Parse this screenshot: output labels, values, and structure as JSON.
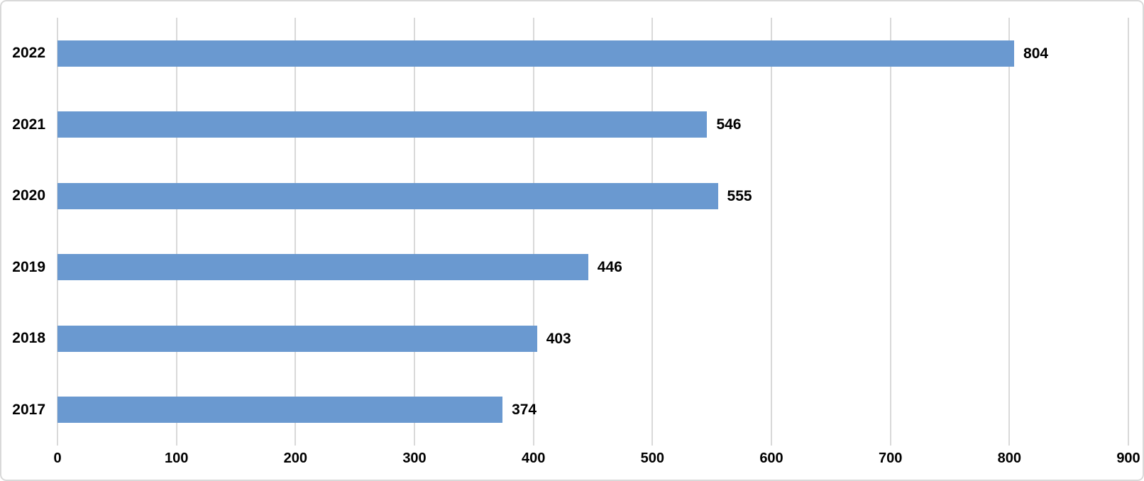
{
  "chart_data": {
    "type": "bar",
    "orientation": "horizontal",
    "title": "",
    "xlabel": "",
    "ylabel": "",
    "categories": [
      "2022",
      "2021",
      "2020",
      "2019",
      "2018",
      "2017"
    ],
    "values": [
      804,
      546,
      555,
      446,
      403,
      374
    ],
    "data_labels": [
      "804",
      "546",
      "555",
      "446",
      "403",
      "374"
    ],
    "xlim": [
      0,
      900
    ],
    "x_ticks": [
      0,
      100,
      200,
      300,
      400,
      500,
      600,
      700,
      800,
      900
    ],
    "x_tick_labels": [
      "0",
      "100",
      "200",
      "300",
      "400",
      "500",
      "600",
      "700",
      "800",
      "900"
    ],
    "grid": "vertical-only",
    "legend": "none",
    "colors": {
      "bar": "#6A99D0",
      "gridline": "#D9D9D9",
      "chart_border": "#D9D9D9",
      "label_text": "#000000",
      "background": "#FFFFFF"
    }
  }
}
